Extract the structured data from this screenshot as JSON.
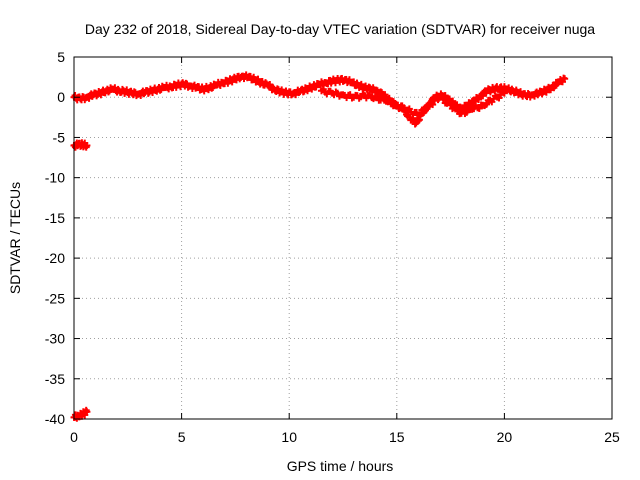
{
  "chart_data": {
    "type": "scatter",
    "title": "Day 232 of 2018, Sidereal Day-to-day VTEC variation (SDTVAR) for receiver nuga",
    "xlabel": "GPS time / hours",
    "ylabel": "SDTVAR / TECUs",
    "xlim": [
      0,
      25
    ],
    "ylim": [
      -40,
      5
    ],
    "xticks": [
      0,
      5,
      10,
      15,
      20,
      25
    ],
    "yticks": [
      5,
      0,
      -5,
      -10,
      -15,
      -20,
      -25,
      -30,
      -35,
      -40
    ],
    "grid": true,
    "marker": "plus",
    "series": [
      {
        "name": "SDTVAR",
        "color": "#ff0000",
        "x": [
          0.0,
          0.3,
          0.6,
          0.9,
          1.2,
          1.5,
          1.8,
          2.1,
          2.4,
          2.7,
          3.0,
          3.3,
          3.6,
          3.9,
          4.2,
          4.5,
          4.8,
          5.1,
          5.4,
          5.7,
          6.0,
          6.3,
          6.6,
          6.9,
          7.2,
          7.5,
          7.8,
          8.1,
          8.4,
          8.7,
          9.0,
          9.3,
          9.6,
          9.9,
          10.2,
          10.5,
          10.8,
          11.1,
          11.4,
          11.7,
          12.0,
          12.3,
          12.6,
          12.9,
          13.2,
          13.5,
          13.8,
          14.1,
          14.4,
          14.7,
          15.0,
          15.3,
          15.6,
          15.9,
          16.2,
          16.5,
          16.8,
          17.1,
          17.4,
          17.7,
          18.0,
          18.3,
          18.6,
          18.9,
          19.2,
          19.5,
          19.8,
          20.1,
          20.4,
          20.7,
          21.0,
          21.3,
          21.6,
          21.9,
          22.2,
          22.5,
          22.8,
          11.5,
          12.0,
          12.5,
          13.0,
          13.5,
          14.0,
          14.5,
          15.0,
          15.5,
          16.0,
          16.5,
          17.0,
          17.5,
          18.0,
          18.5,
          19.0,
          19.5,
          20.0,
          0.0,
          0.2,
          0.4,
          0.6,
          0.0,
          0.2,
          0.4,
          0.6
        ],
        "y": [
          0.0,
          -0.2,
          0.0,
          0.3,
          0.5,
          0.8,
          1.0,
          0.8,
          0.7,
          0.5,
          0.4,
          0.6,
          0.8,
          1.0,
          1.2,
          1.3,
          1.5,
          1.6,
          1.4,
          1.2,
          1.0,
          1.2,
          1.5,
          1.8,
          2.0,
          2.3,
          2.6,
          2.5,
          2.2,
          1.8,
          1.5,
          1.0,
          0.7,
          0.5,
          0.5,
          0.7,
          1.0,
          1.3,
          1.6,
          1.8,
          2.0,
          2.1,
          2.2,
          1.8,
          1.5,
          1.2,
          1.0,
          0.8,
          0.2,
          -0.5,
          -1.0,
          -1.5,
          -2.5,
          -3.2,
          -2.0,
          -0.8,
          0.0,
          0.2,
          -0.2,
          -1.0,
          -1.5,
          -1.0,
          -0.5,
          0.2,
          0.8,
          1.0,
          1.2,
          1.0,
          0.8,
          0.5,
          0.2,
          0.3,
          0.5,
          0.8,
          1.2,
          1.8,
          2.3,
          0.8,
          0.5,
          0.3,
          0.0,
          0.2,
          0.0,
          -0.5,
          -1.0,
          -1.6,
          -2.2,
          -1.0,
          0.0,
          -1.0,
          -2.0,
          -1.5,
          -1.0,
          -0.2,
          0.5,
          -6.0,
          -5.9,
          -5.9,
          -6.0,
          -39.8,
          -39.6,
          -39.4,
          -39.1
        ]
      }
    ]
  }
}
